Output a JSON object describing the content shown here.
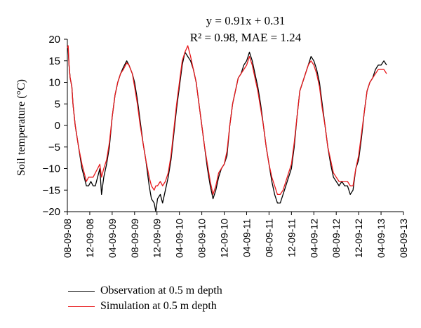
{
  "chart_data": {
    "type": "line",
    "title_line1": "y = 0.91x + 0.31",
    "title_line2": "R² = 0.98, MAE = 1.24",
    "ylabel": "Soil temperature (°C)",
    "xlabel": "",
    "ylim": [
      -20,
      20
    ],
    "yticks": [
      "20",
      "15",
      "10",
      "5",
      "0",
      "−5",
      "−10",
      "−15",
      "−20"
    ],
    "xtick_labels": [
      "08-09-08",
      "12-09-08",
      "04-09-09",
      "08-09-09",
      "12-09-09",
      "04-09-10",
      "08-09-10",
      "12-09-10",
      "04-09-11",
      "08-09-11",
      "12-09-11",
      "04-09-12",
      "08-09-12",
      "12-09-12",
      "04-09-13",
      "08-09-13"
    ],
    "x_unit": "months since 08-09-08",
    "series": [
      {
        "name": "Observation at 0.5 m depth",
        "color": "#000000",
        "points": [
          [
            0,
            18.5
          ],
          [
            0.15,
            17.5
          ],
          [
            0.3,
            14
          ],
          [
            0.5,
            11
          ],
          [
            0.8,
            9
          ],
          [
            1.0,
            5
          ],
          [
            1.4,
            0
          ],
          [
            2.0,
            -5
          ],
          [
            2.6,
            -10
          ],
          [
            3.0,
            -12
          ],
          [
            3.4,
            -14
          ],
          [
            3.8,
            -14
          ],
          [
            4.2,
            -13
          ],
          [
            4.6,
            -14
          ],
          [
            5.0,
            -14
          ],
          [
            5.4,
            -12
          ],
          [
            5.8,
            -10
          ],
          [
            6.1,
            -16
          ],
          [
            6.5,
            -12
          ],
          [
            7.0,
            -9
          ],
          [
            7.5,
            -5
          ],
          [
            8.0,
            2
          ],
          [
            8.5,
            7
          ],
          [
            9.0,
            10
          ],
          [
            9.5,
            12
          ],
          [
            10.0,
            13.5
          ],
          [
            10.6,
            15
          ],
          [
            11.0,
            14
          ],
          [
            11.6,
            12
          ],
          [
            12.0,
            10
          ],
          [
            12.5,
            6
          ],
          [
            13.0,
            1
          ],
          [
            13.5,
            -4
          ],
          [
            14.0,
            -8
          ],
          [
            14.6,
            -14
          ],
          [
            15.0,
            -17
          ],
          [
            15.5,
            -18
          ],
          [
            15.8,
            -20
          ],
          [
            16.1,
            -17
          ],
          [
            16.6,
            -16
          ],
          [
            17.0,
            -18
          ],
          [
            17.5,
            -15
          ],
          [
            18.0,
            -12
          ],
          [
            18.5,
            -8
          ],
          [
            19.0,
            -2
          ],
          [
            19.5,
            4
          ],
          [
            20.0,
            9
          ],
          [
            20.5,
            14
          ],
          [
            21.0,
            17
          ],
          [
            21.5,
            16
          ],
          [
            22.0,
            15
          ],
          [
            22.5,
            13
          ],
          [
            23.0,
            10
          ],
          [
            23.5,
            5
          ],
          [
            24.0,
            0
          ],
          [
            24.5,
            -5
          ],
          [
            25.0,
            -10
          ],
          [
            25.5,
            -14
          ],
          [
            26.0,
            -17
          ],
          [
            26.5,
            -15
          ],
          [
            27.0,
            -12
          ],
          [
            27.5,
            -10
          ],
          [
            28.0,
            -9
          ],
          [
            28.5,
            -7
          ],
          [
            29.0,
            0
          ],
          [
            29.5,
            5
          ],
          [
            30.0,
            8
          ],
          [
            30.5,
            11
          ],
          [
            31.0,
            12
          ],
          [
            31.5,
            14
          ],
          [
            32.0,
            15
          ],
          [
            32.5,
            17
          ],
          [
            33.0,
            15
          ],
          [
            33.5,
            12
          ],
          [
            34.0,
            9
          ],
          [
            34.5,
            5
          ],
          [
            35.0,
            0
          ],
          [
            35.5,
            -5
          ],
          [
            36.0,
            -9
          ],
          [
            36.5,
            -13
          ],
          [
            37.0,
            -16
          ],
          [
            37.5,
            -18
          ],
          [
            38.0,
            -18
          ],
          [
            38.5,
            -16
          ],
          [
            39.0,
            -14
          ],
          [
            39.5,
            -12
          ],
          [
            40.0,
            -10
          ],
          [
            40.5,
            -5
          ],
          [
            41.0,
            2
          ],
          [
            41.5,
            8
          ],
          [
            42.0,
            10
          ],
          [
            42.5,
            12
          ],
          [
            43.0,
            14
          ],
          [
            43.5,
            16
          ],
          [
            44.0,
            15
          ],
          [
            44.5,
            13
          ],
          [
            45.0,
            10
          ],
          [
            45.5,
            5
          ],
          [
            46.0,
            0
          ],
          [
            46.5,
            -5
          ],
          [
            47.0,
            -9
          ],
          [
            47.5,
            -12
          ],
          [
            48.0,
            -13
          ],
          [
            48.5,
            -14
          ],
          [
            49.0,
            -13
          ],
          [
            49.5,
            -14
          ],
          [
            50.0,
            -14
          ],
          [
            50.5,
            -16
          ],
          [
            51.0,
            -15
          ],
          [
            51.5,
            -10
          ],
          [
            52.0,
            -8
          ],
          [
            52.5,
            -3
          ],
          [
            53.0,
            3
          ],
          [
            53.5,
            8
          ],
          [
            54.0,
            10
          ],
          [
            54.5,
            11
          ],
          [
            55.0,
            13
          ],
          [
            55.5,
            14
          ],
          [
            56.0,
            14
          ],
          [
            56.5,
            15
          ],
          [
            57.0,
            14
          ]
        ]
      },
      {
        "name": "Simulation at 0.5 m depth",
        "color": "#e8181b",
        "points": [
          [
            0,
            18
          ],
          [
            0.15,
            18.5
          ],
          [
            0.3,
            14
          ],
          [
            0.5,
            11
          ],
          [
            0.8,
            9
          ],
          [
            1.0,
            5
          ],
          [
            1.4,
            0
          ],
          [
            2.0,
            -5
          ],
          [
            2.6,
            -9
          ],
          [
            3.0,
            -11
          ],
          [
            3.4,
            -13
          ],
          [
            3.8,
            -12
          ],
          [
            4.2,
            -12
          ],
          [
            4.6,
            -12
          ],
          [
            5.0,
            -11
          ],
          [
            5.4,
            -10
          ],
          [
            5.8,
            -9
          ],
          [
            6.1,
            -12
          ],
          [
            6.5,
            -10
          ],
          [
            7.0,
            -8
          ],
          [
            7.5,
            -4
          ],
          [
            8.0,
            2
          ],
          [
            8.5,
            7
          ],
          [
            9.0,
            10
          ],
          [
            9.5,
            12
          ],
          [
            10.0,
            13
          ],
          [
            10.6,
            14.5
          ],
          [
            11.0,
            14
          ],
          [
            11.6,
            12
          ],
          [
            12.0,
            9
          ],
          [
            12.5,
            5
          ],
          [
            13.0,
            0
          ],
          [
            13.5,
            -4
          ],
          [
            14.0,
            -8
          ],
          [
            14.6,
            -12
          ],
          [
            15.0,
            -14
          ],
          [
            15.5,
            -15
          ],
          [
            15.8,
            -14
          ],
          [
            16.1,
            -14
          ],
          [
            16.6,
            -13
          ],
          [
            17.0,
            -14
          ],
          [
            17.5,
            -13
          ],
          [
            18.0,
            -11
          ],
          [
            18.5,
            -7
          ],
          [
            19.0,
            -1
          ],
          [
            19.5,
            5
          ],
          [
            20.0,
            10
          ],
          [
            20.5,
            15
          ],
          [
            21.0,
            17
          ],
          [
            21.5,
            18.5
          ],
          [
            22.0,
            16
          ],
          [
            22.5,
            13
          ],
          [
            23.0,
            10
          ],
          [
            23.5,
            5
          ],
          [
            24.0,
            0
          ],
          [
            24.5,
            -5
          ],
          [
            25.0,
            -9
          ],
          [
            25.5,
            -13
          ],
          [
            26.0,
            -16
          ],
          [
            26.5,
            -14
          ],
          [
            27.0,
            -11
          ],
          [
            27.5,
            -10
          ],
          [
            28.0,
            -9
          ],
          [
            28.5,
            -6
          ],
          [
            29.0,
            0
          ],
          [
            29.5,
            5
          ],
          [
            30.0,
            8
          ],
          [
            30.5,
            11
          ],
          [
            31.0,
            12
          ],
          [
            31.5,
            13
          ],
          [
            32.0,
            14
          ],
          [
            32.5,
            16
          ],
          [
            33.0,
            14
          ],
          [
            33.5,
            11
          ],
          [
            34.0,
            8
          ],
          [
            34.5,
            4
          ],
          [
            35.0,
            0
          ],
          [
            35.5,
            -5
          ],
          [
            36.0,
            -9
          ],
          [
            36.5,
            -12
          ],
          [
            37.0,
            -14
          ],
          [
            37.5,
            -16
          ],
          [
            38.0,
            -16
          ],
          [
            38.5,
            -15
          ],
          [
            39.0,
            -13
          ],
          [
            39.5,
            -11
          ],
          [
            40.0,
            -9
          ],
          [
            40.5,
            -4
          ],
          [
            41.0,
            2
          ],
          [
            41.5,
            8
          ],
          [
            42.0,
            10
          ],
          [
            42.5,
            12
          ],
          [
            43.0,
            14
          ],
          [
            43.5,
            15
          ],
          [
            44.0,
            14
          ],
          [
            44.5,
            12
          ],
          [
            45.0,
            9
          ],
          [
            45.5,
            4
          ],
          [
            46.0,
            0
          ],
          [
            46.5,
            -5
          ],
          [
            47.0,
            -8
          ],
          [
            47.5,
            -11
          ],
          [
            48.0,
            -12
          ],
          [
            48.5,
            -13
          ],
          [
            49.0,
            -13
          ],
          [
            49.5,
            -13
          ],
          [
            50.0,
            -13
          ],
          [
            50.5,
            -14
          ],
          [
            51.0,
            -14
          ],
          [
            51.5,
            -10
          ],
          [
            52.0,
            -7
          ],
          [
            52.5,
            -2
          ],
          [
            53.0,
            3
          ],
          [
            53.5,
            8
          ],
          [
            54.0,
            10
          ],
          [
            54.5,
            11
          ],
          [
            55.0,
            12
          ],
          [
            55.5,
            13
          ],
          [
            56.0,
            13
          ],
          [
            56.5,
            13
          ],
          [
            57.0,
            12
          ]
        ]
      }
    ],
    "legend_position": "bottom-left"
  }
}
